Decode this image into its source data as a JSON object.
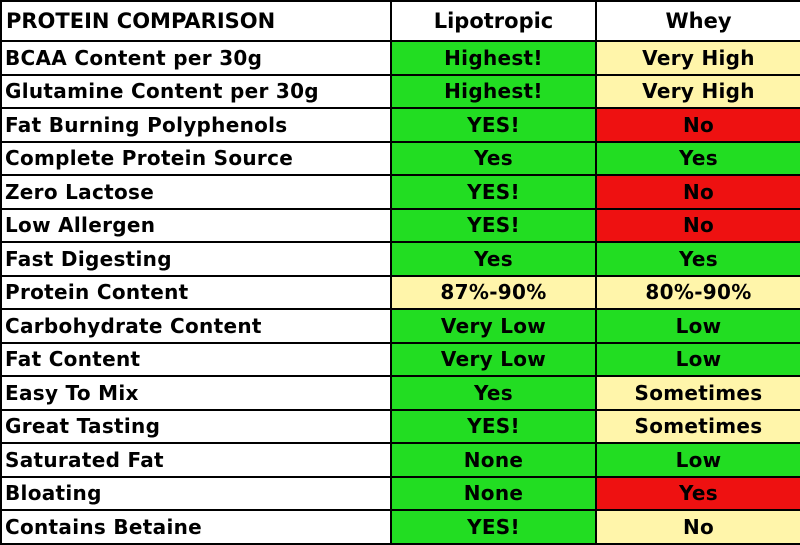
{
  "colors": {
    "green": "#22dd22",
    "yellow": "#fff5aa",
    "red": "#ee1111",
    "border": "#000000"
  },
  "chart_data": {
    "type": "table",
    "columns": [
      "PROTEIN COMPARISON",
      "Lipotropic",
      "Whey"
    ],
    "rows": [
      {
        "feature": "BCAA Content per 30g",
        "lipotropic": "Highest!",
        "lipotropic_color": "green",
        "whey": "Very High",
        "whey_color": "yellow"
      },
      {
        "feature": "Glutamine Content per 30g",
        "lipotropic": "Highest!",
        "lipotropic_color": "green",
        "whey": "Very High",
        "whey_color": "yellow"
      },
      {
        "feature": "Fat Burning Polyphenols",
        "lipotropic": "YES!",
        "lipotropic_color": "green",
        "whey": "No",
        "whey_color": "red"
      },
      {
        "feature": "Complete Protein Source",
        "lipotropic": "Yes",
        "lipotropic_color": "green",
        "whey": "Yes",
        "whey_color": "green"
      },
      {
        "feature": "Zero Lactose",
        "lipotropic": "YES!",
        "lipotropic_color": "green",
        "whey": "No",
        "whey_color": "red"
      },
      {
        "feature": "Low Allergen",
        "lipotropic": "YES!",
        "lipotropic_color": "green",
        "whey": "No",
        "whey_color": "red"
      },
      {
        "feature": "Fast Digesting",
        "lipotropic": "Yes",
        "lipotropic_color": "green",
        "whey": "Yes",
        "whey_color": "green"
      },
      {
        "feature": "Protein Content",
        "lipotropic": "87%-90%",
        "lipotropic_color": "yellow",
        "whey": "80%-90%",
        "whey_color": "yellow"
      },
      {
        "feature": "Carbohydrate Content",
        "lipotropic": "Very Low",
        "lipotropic_color": "green",
        "whey": "Low",
        "whey_color": "green"
      },
      {
        "feature": "Fat Content",
        "lipotropic": "Very Low",
        "lipotropic_color": "green",
        "whey": "Low",
        "whey_color": "green"
      },
      {
        "feature": "Easy To Mix",
        "lipotropic": "Yes",
        "lipotropic_color": "green",
        "whey": "Sometimes",
        "whey_color": "yellow"
      },
      {
        "feature": "Great Tasting",
        "lipotropic": "YES!",
        "lipotropic_color": "green",
        "whey": "Sometimes",
        "whey_color": "yellow"
      },
      {
        "feature": "Saturated Fat",
        "lipotropic": "None",
        "lipotropic_color": "green",
        "whey": "Low",
        "whey_color": "green"
      },
      {
        "feature": "Bloating",
        "lipotropic": "None",
        "lipotropic_color": "green",
        "whey": "Yes",
        "whey_color": "red"
      },
      {
        "feature": "Contains Betaine",
        "lipotropic": "YES!",
        "lipotropic_color": "green",
        "whey": "No",
        "whey_color": "yellow"
      }
    ]
  }
}
